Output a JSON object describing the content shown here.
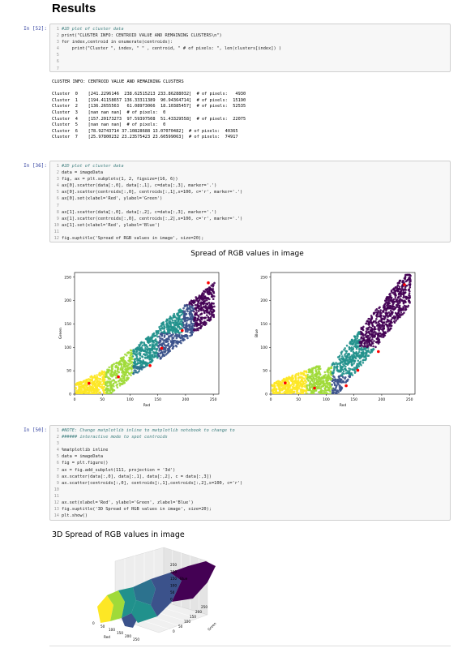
{
  "results_heading": "Results",
  "cell52": {
    "prompt": "In [52]:",
    "lines": [
      {
        "n": "1",
        "text": "#2D plot of cluster data",
        "comment": true
      },
      {
        "n": "2",
        "text": "print(\"CLUSTER INFO: CENTROID VALUE AND REMAINING CLUSTERS\\n\")"
      },
      {
        "n": "3",
        "text": "for index,centroid in enumerate(centroids):"
      },
      {
        "n": "4",
        "text": "    print(\"Cluster \", index, \" \" , centroid, \" # of pixels: \", len(clusters[index]) )"
      },
      {
        "n": "5",
        "text": ""
      },
      {
        "n": "6",
        "text": ""
      },
      {
        "n": "7",
        "text": ""
      }
    ],
    "output": [
      "CLUSTER INFO: CENTROID VALUE AND REMAINING CLUSTERS",
      "",
      "Cluster  0    [241.2296146  238.62515213 233.86288032]  # of pixels:   4930",
      "Cluster  1    [194.41158657 136.33311389  90.94364714]  # of pixels:  15190",
      "Cluster  2    [136.2655563   61.08973066  18.10385457]  # of pixels:  52535",
      "Cluster  3    [nan nan nan]  # of pixels:  0",
      "Cluster  4    [157.20173273  97.59397508  51.43329558]  # of pixels:  22075",
      "Cluster  5    [nan nan nan]  # of pixels:  0",
      "Cluster  6    [78.92743714 37.10828688 13.07070482]  # of pixels:  40365",
      "Cluster  7    [25.97800232 23.23575423 23.60599063]  # of pixels:  74917"
    ]
  },
  "cell36": {
    "prompt": "In [36]:",
    "lines": [
      {
        "n": "1",
        "text": "#2D plot of cluster data",
        "comment": true
      },
      {
        "n": "2",
        "text": "data = imageData"
      },
      {
        "n": "3",
        "text": "fig, ax = plt.subplots(1, 2, figsize=(16, 6))"
      },
      {
        "n": "4",
        "text": "ax[0].scatter(data[:,0], data[:,1], c=data[:,3], marker='.')"
      },
      {
        "n": "5",
        "text": "ax[0].scatter(centroids[:,0], centroids[:,1],s=100, c='r', marker='.')"
      },
      {
        "n": "6",
        "text": "ax[0].set(xlabel='Red', ylabel='Green')"
      },
      {
        "n": "7",
        "text": ""
      },
      {
        "n": "8",
        "text": "ax[1].scatter(data[:,0], data[:,2], c=data[:,3], marker='.')"
      },
      {
        "n": "9",
        "text": "ax[1].scatter(centroids[:,0], centroids[:,2],s=100, c='r', marker='.')"
      },
      {
        "n": "10",
        "text": "ax[1].set(xlabel='Red', ylabel='Blue')"
      },
      {
        "n": "11",
        "text": ""
      },
      {
        "n": "12",
        "text": "fig.suptitle('Spread of RGB values in image', size=20);"
      }
    ],
    "figure_title": "Spread of RGB values in image"
  },
  "cell50": {
    "prompt": "In [50]:",
    "lines": [
      {
        "n": "1",
        "text": "#NOTE: Change matplotlib inline to matplotlib notebook to change to",
        "comment": true
      },
      {
        "n": "2",
        "text": "###### interactive mode to spot centroids",
        "comment": true
      },
      {
        "n": "3",
        "text": ""
      },
      {
        "n": "4",
        "text": "%matplotlib inline"
      },
      {
        "n": "5",
        "text": "data = imageData"
      },
      {
        "n": "6",
        "text": "fig = plt.figure()"
      },
      {
        "n": "7",
        "text": "ax = fig.add_subplot(111, projection = '3d')"
      },
      {
        "n": "8",
        "text": "ax.scatter(data[:,0], data[:,1], data[:,2], c = data[:,3])"
      },
      {
        "n": "9",
        "text": "ax.scatter(centroids[:,0], centroids[:,1],centroids[:,2],s=100, c='r')"
      },
      {
        "n": "10",
        "text": ""
      },
      {
        "n": "11",
        "text": ""
      },
      {
        "n": "12",
        "text": "ax.set(xlabel='Red', ylabel='Green', zlabel='Blue')"
      },
      {
        "n": "13",
        "text": "fig.suptitle('3D Spread of RGB values in image', size=20);"
      },
      {
        "n": "14",
        "text": "plt.show()"
      }
    ],
    "figure_title": "3D Spread of RGB values in image"
  },
  "chart_data": [
    {
      "type": "scatter",
      "title": "",
      "xlabel": "Red",
      "ylabel": "Green",
      "xlim": [
        0,
        260
      ],
      "ylim": [
        0,
        260
      ],
      "xticks": [
        "0",
        "50",
        "100",
        "150",
        "200",
        "250"
      ],
      "yticks": [
        "0",
        "50",
        "100",
        "150",
        "200",
        "250"
      ],
      "centroids": [
        {
          "x": 241,
          "y": 238
        },
        {
          "x": 194,
          "y": 136
        },
        {
          "x": 136,
          "y": 61
        },
        {
          "x": 157,
          "y": 98
        },
        {
          "x": 79,
          "y": 37
        },
        {
          "x": 26,
          "y": 23
        }
      ],
      "colors": {
        "c0": "#440154",
        "c1": "#3b528b",
        "c2": "#2c728e",
        "c3": "#21918c",
        "c4": "#5ec962",
        "c5": "#a0da39",
        "c6": "#fde725",
        "centroid": "#ff0000"
      }
    },
    {
      "type": "scatter",
      "title": "",
      "xlabel": "Red",
      "ylabel": "Blue",
      "xlim": [
        0,
        260
      ],
      "ylim": [
        0,
        260
      ],
      "xticks": [
        "0",
        "50",
        "100",
        "150",
        "200",
        "250"
      ],
      "yticks": [
        "0",
        "50",
        "100",
        "150",
        "200",
        "250"
      ],
      "centroids": [
        {
          "x": 241,
          "y": 234
        },
        {
          "x": 194,
          "y": 91
        },
        {
          "x": 136,
          "y": 18
        },
        {
          "x": 157,
          "y": 51
        },
        {
          "x": 79,
          "y": 13
        },
        {
          "x": 26,
          "y": 24
        }
      ]
    },
    {
      "type": "scatter",
      "title": "",
      "xlabel": "Red",
      "ylabel": "Green",
      "zlabel": "Blue",
      "xticks": [
        "0",
        "50",
        "100",
        "150",
        "200",
        "250"
      ],
      "yticks": [
        "0",
        "50",
        "100",
        "150",
        "200",
        "250"
      ],
      "zticks": [
        "0",
        "50",
        "100",
        "150",
        "200",
        "250"
      ]
    }
  ]
}
